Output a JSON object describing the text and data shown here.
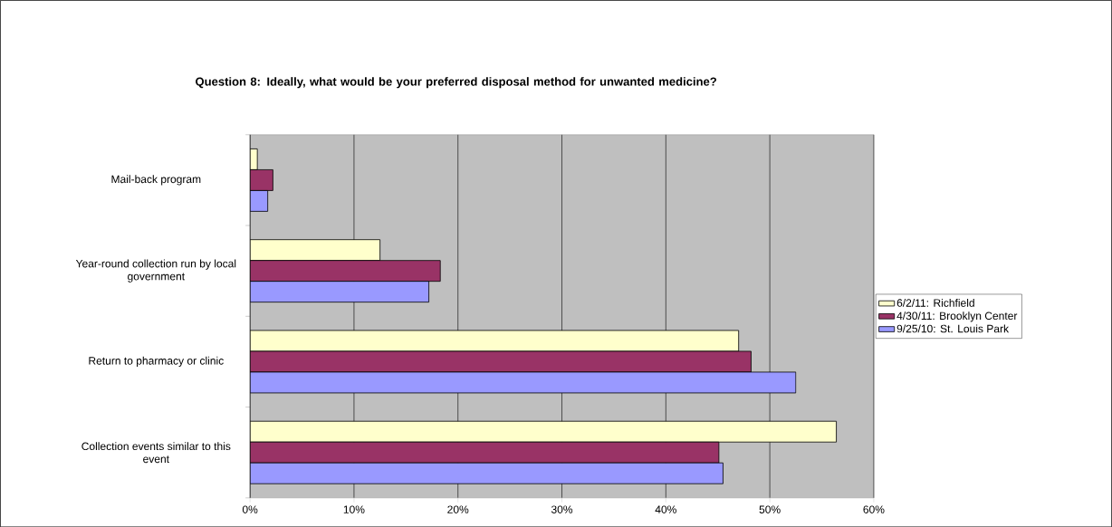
{
  "chart_data": {
    "type": "bar",
    "orientation": "horizontal",
    "title": "Question 8: Ideally, what would be your preferred disposal method for unwanted medicine?",
    "categories": [
      "Mail-back program",
      "Year-round collection run by local government",
      "Return to pharmacy or clinic",
      "Collection events similar to this event"
    ],
    "series": [
      {
        "name": "6/2/11: Richfield",
        "color": "#ffffcc",
        "values": [
          0.7,
          12.5,
          47.0,
          56.4
        ]
      },
      {
        "name": "4/30/11: Brooklyn Center",
        "color": "#993366",
        "values": [
          2.2,
          18.3,
          48.2,
          45.1
        ]
      },
      {
        "name": "9/25/10: St. Louis Park",
        "color": "#9999ff",
        "values": [
          1.7,
          17.2,
          52.5,
          45.5
        ]
      }
    ],
    "xlim": [
      0,
      60
    ],
    "xticks": [
      {
        "value": 0,
        "label": "0%"
      },
      {
        "value": 10,
        "label": "10%"
      },
      {
        "value": 20,
        "label": "20%"
      },
      {
        "value": 30,
        "label": "30%"
      },
      {
        "value": 40,
        "label": "40%"
      },
      {
        "value": 50,
        "label": "50%"
      },
      {
        "value": 60,
        "label": "60%"
      }
    ],
    "grid": "x",
    "legend": "right"
  }
}
